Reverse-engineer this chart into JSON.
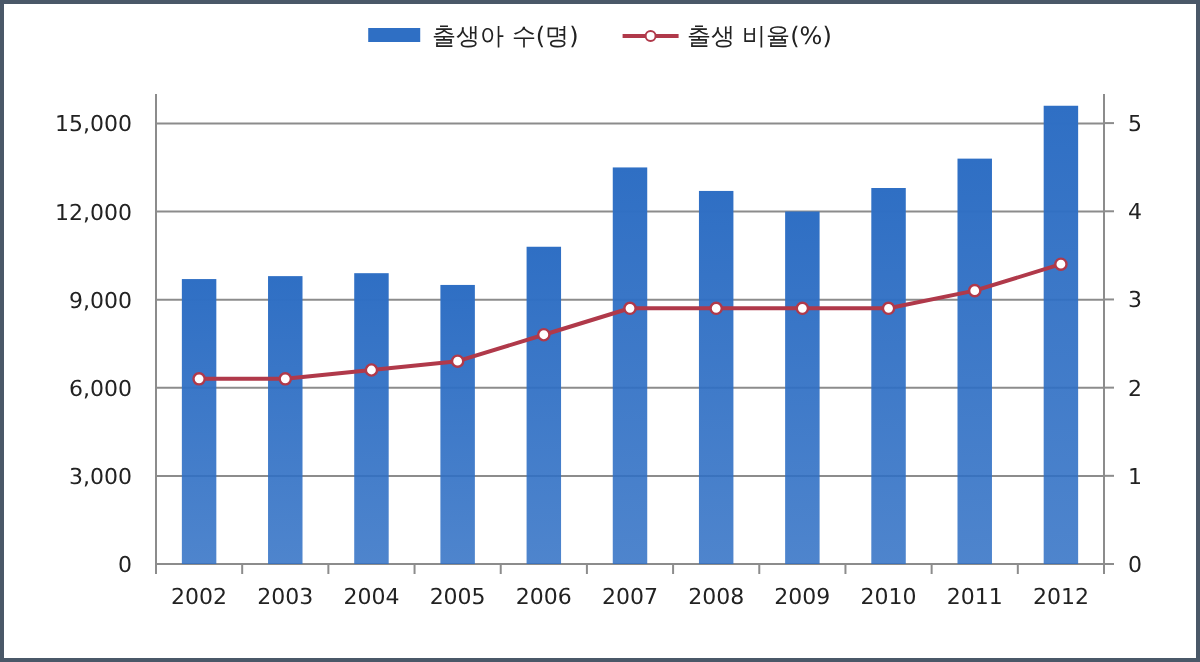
{
  "chart_data": {
    "type": "bar",
    "categories": [
      "2002",
      "2003",
      "2004",
      "2005",
      "2006",
      "2007",
      "2008",
      "2009",
      "2010",
      "2011",
      "2012"
    ],
    "series": [
      {
        "name": "출생아 수(명)",
        "color": "#2f6fc4",
        "values": [
          9700,
          9800,
          9900,
          9500,
          10800,
          13500,
          12700,
          12000,
          12800,
          13800,
          15600
        ]
      },
      {
        "name": "출생 비율(%)",
        "type": "line",
        "axis": "y2",
        "color": "#b0394a",
        "marker": "circle",
        "values": [
          2.1,
          2.1,
          2.2,
          2.3,
          2.6,
          2.9,
          2.9,
          2.9,
          2.9,
          3.1,
          3.4
        ]
      }
    ],
    "ylim": [
      0,
      16000
    ],
    "yticks": [
      {
        "value": 0,
        "label": "0"
      },
      {
        "value": 3000,
        "label": "3,000"
      },
      {
        "value": 6000,
        "label": "6,000"
      },
      {
        "value": 9000,
        "label": "9,000"
      },
      {
        "value": 12000,
        "label": "12,000"
      },
      {
        "value": 15000,
        "label": "15,000"
      }
    ],
    "y2lim": [
      0,
      5.33
    ],
    "y2ticks": [
      0,
      1,
      2,
      3,
      4,
      5
    ],
    "grid": "y",
    "legend": "top"
  }
}
